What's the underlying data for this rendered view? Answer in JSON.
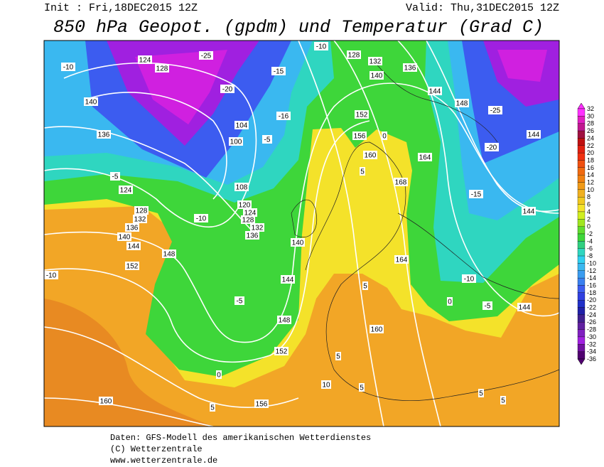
{
  "header": {
    "init": "Init : Fri,18DEC2015 12Z",
    "valid": "Valid: Thu,31DEC2015 12Z",
    "title": "850 hPa Geopot. (gpdm) und Temperatur (Grad C)"
  },
  "map": {
    "contour_labels": [
      124,
      128,
      -10,
      140,
      136,
      -5,
      124,
      128,
      132,
      136,
      140,
      144,
      148,
      152,
      -10,
      -5,
      0,
      5,
      156,
      160,
      152,
      148,
      144,
      140,
      136,
      132,
      128,
      124,
      120,
      108,
      100,
      104,
      -10,
      -20,
      -25,
      -10,
      128,
      132,
      136,
      140,
      144,
      148,
      -25,
      152,
      156,
      160,
      164,
      168,
      164,
      -20,
      -15,
      144,
      144,
      144,
      -10,
      -5,
      0,
      5,
      160,
      5,
      10,
      5,
      5,
      5,
      -15,
      -16,
      -5,
      0,
      5
    ]
  },
  "colorbar": {
    "labels": [
      32,
      30,
      28,
      26,
      24,
      22,
      20,
      18,
      16,
      14,
      12,
      10,
      8,
      6,
      4,
      2,
      0,
      -2,
      -4,
      -6,
      -8,
      -10,
      -12,
      -14,
      -16,
      -18,
      -20,
      -22,
      -24,
      -26,
      -28,
      -30,
      -32,
      -34,
      -36
    ]
  },
  "footer": {
    "lines": [
      "Daten: GFS-Modell des amerikanischen Wetterdienstes",
      "(C) Wetterzentrale",
      "www.wetterzentrale.de"
    ]
  }
}
